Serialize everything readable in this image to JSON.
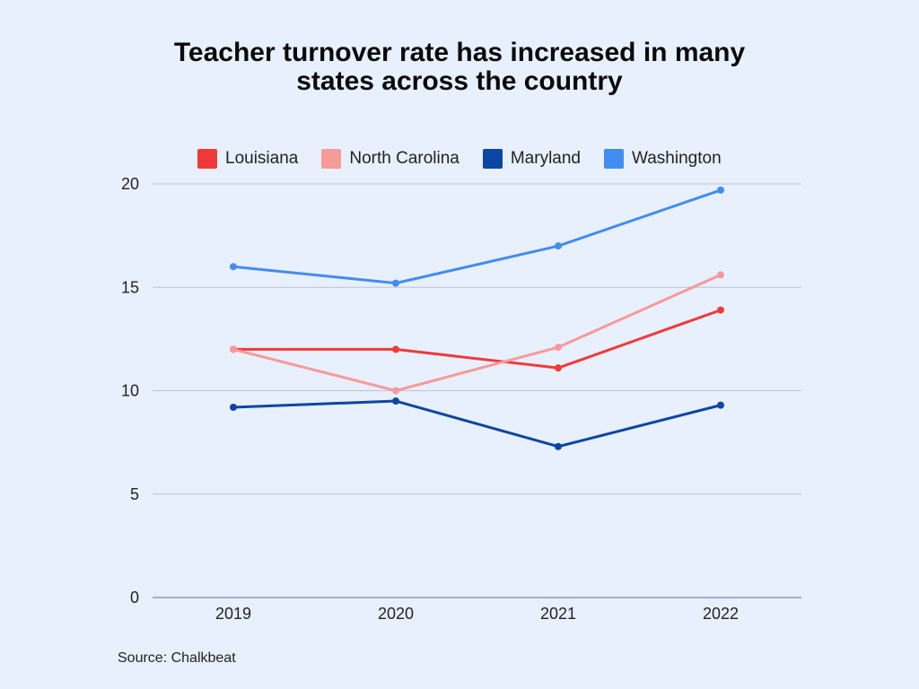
{
  "title_line1": "Teacher turnover rate has increased in many",
  "title_line2": "states across the country",
  "source": "Source: Chalkbeat",
  "chart_data": {
    "type": "line",
    "title": "Teacher turnover rate has increased in many states across the country",
    "xlabel": "",
    "ylabel": "",
    "categories": [
      "2019",
      "2020",
      "2021",
      "2022"
    ],
    "ylim": [
      0,
      20
    ],
    "yticks": [
      0,
      5,
      10,
      15,
      20
    ],
    "grid": true,
    "legend_position": "top",
    "series": [
      {
        "name": "Louisiana",
        "color": "#f03a3a",
        "values": [
          12.0,
          12.0,
          11.1,
          13.9
        ]
      },
      {
        "name": "North Carolina",
        "color": "#f79a9a",
        "values": [
          12.0,
          10.0,
          12.1,
          15.6
        ]
      },
      {
        "name": "Maryland",
        "color": "#0b47a3",
        "values": [
          9.2,
          9.5,
          7.3,
          9.3
        ]
      },
      {
        "name": "Washington",
        "color": "#428cf0",
        "values": [
          16.0,
          15.2,
          17.0,
          19.7
        ]
      }
    ]
  }
}
